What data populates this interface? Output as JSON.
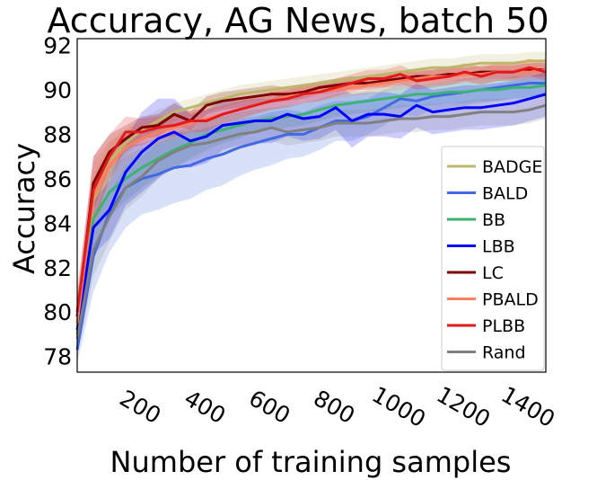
{
  "chart_data": {
    "type": "line",
    "title": "Accuracy, AG News, batch 50",
    "xlabel": "Number of training samples",
    "ylabel": "Accuracy",
    "xlim": [
      0,
      1450
    ],
    "ylim": [
      77.3,
      92.3
    ],
    "xticks": [
      200,
      400,
      600,
      800,
      1000,
      1200,
      1400
    ],
    "yticks": [
      78,
      80,
      82,
      84,
      86,
      88,
      90,
      92
    ],
    "grid": false,
    "legend_position": "lower-right",
    "x": [
      0,
      50,
      100,
      150,
      200,
      250,
      300,
      350,
      400,
      450,
      500,
      550,
      600,
      650,
      700,
      750,
      800,
      850,
      900,
      950,
      1000,
      1050,
      1100,
      1150,
      1200,
      1250,
      1300,
      1350,
      1400,
      1450
    ],
    "series": [
      {
        "name": "BADGE",
        "color": "#bdb76b",
        "values": [
          79.5,
          85.0,
          86.8,
          87.6,
          88.2,
          88.6,
          89.0,
          89.2,
          89.4,
          89.6,
          89.8,
          89.9,
          90.0,
          90.1,
          90.2,
          90.3,
          90.4,
          90.5,
          90.6,
          90.7,
          90.8,
          90.9,
          91.0,
          91.0,
          91.1,
          91.2,
          91.2,
          91.2,
          91.3,
          91.3
        ],
        "band": [
          0.8,
          1.2,
          0.8,
          0.6,
          0.5,
          0.5,
          0.4,
          0.4,
          0.4,
          0.4,
          0.4,
          0.4,
          0.4,
          0.4,
          0.4,
          0.4,
          0.4,
          0.4,
          0.4,
          0.4,
          0.4,
          0.4,
          0.4,
          0.4,
          0.4,
          0.4,
          0.4,
          0.4,
          0.4,
          0.4
        ]
      },
      {
        "name": "BALD",
        "color": "#4169e1",
        "values": [
          78.3,
          82.5,
          84.5,
          85.6,
          86.0,
          86.2,
          86.5,
          86.6,
          86.9,
          87.1,
          87.4,
          87.6,
          87.8,
          88.0,
          88.0,
          88.3,
          88.6,
          88.6,
          88.8,
          89.2,
          89.6,
          89.5,
          89.7,
          89.8,
          89.9,
          90.0,
          90.1,
          90.2,
          90.3,
          90.3
        ],
        "band": [
          0.6,
          1.6,
          1.8,
          1.8,
          1.6,
          1.6,
          1.6,
          1.5,
          1.4,
          1.4,
          1.3,
          1.2,
          1.2,
          1.1,
          1.0,
          1.0,
          0.9,
          0.9,
          0.8,
          0.8,
          0.7,
          0.7,
          0.6,
          0.6,
          0.6,
          0.6,
          0.6,
          0.6,
          0.6,
          0.6
        ]
      },
      {
        "name": "BB",
        "color": "#3cb371",
        "values": [
          79.0,
          84.2,
          85.4,
          86.0,
          86.5,
          86.9,
          87.3,
          87.6,
          88.0,
          88.2,
          88.4,
          88.6,
          88.7,
          88.8,
          88.9,
          89.1,
          89.3,
          89.4,
          89.5,
          89.6,
          89.7,
          89.8,
          89.8,
          89.9,
          89.9,
          90.0,
          90.0,
          90.1,
          90.1,
          90.2
        ],
        "band": [
          0.7,
          1.3,
          1.1,
          1.0,
          0.9,
          0.8,
          0.8,
          0.7,
          0.7,
          0.6,
          0.6,
          0.5,
          0.5,
          0.5,
          0.5,
          0.5,
          0.5,
          0.5,
          0.5,
          0.5,
          0.5,
          0.5,
          0.5,
          0.5,
          0.5,
          0.5,
          0.5,
          0.5,
          0.5,
          0.5
        ]
      },
      {
        "name": "LBB",
        "color": "#0000ff",
        "values": [
          79.2,
          83.8,
          84.6,
          86.3,
          87.2,
          87.8,
          88.1,
          87.7,
          87.9,
          88.4,
          88.5,
          88.6,
          88.6,
          88.9,
          88.7,
          88.8,
          89.2,
          88.6,
          88.9,
          88.9,
          88.8,
          89.3,
          89.0,
          89.1,
          89.2,
          89.2,
          89.3,
          89.4,
          89.6,
          89.8
        ],
        "band": [
          0.8,
          1.2,
          1.3,
          1.5,
          1.8,
          1.8,
          1.5,
          1.2,
          1.2,
          1.1,
          1.0,
          1.0,
          1.0,
          1.0,
          1.0,
          1.0,
          1.0,
          1.2,
          1.0,
          1.0,
          1.0,
          1.0,
          1.0,
          1.0,
          1.0,
          1.0,
          1.0,
          1.0,
          1.0,
          1.0
        ]
      },
      {
        "name": "LC",
        "color": "#800000",
        "values": [
          79.8,
          85.8,
          87.2,
          87.8,
          88.3,
          88.4,
          88.9,
          88.6,
          89.3,
          89.5,
          89.6,
          89.7,
          89.8,
          89.8,
          89.9,
          90.1,
          90.2,
          90.3,
          90.3,
          90.4,
          90.5,
          90.6,
          90.6,
          90.7,
          90.7,
          90.8,
          90.8,
          90.8,
          90.9,
          90.9
        ],
        "band": [
          0.9,
          1.2,
          0.8,
          0.6,
          0.5,
          0.5,
          0.5,
          0.4,
          0.4,
          0.4,
          0.4,
          0.4,
          0.4,
          0.3,
          0.3,
          0.3,
          0.3,
          0.3,
          0.3,
          0.3,
          0.3,
          0.3,
          0.3,
          0.3,
          0.3,
          0.3,
          0.3,
          0.3,
          0.3,
          0.3
        ]
      },
      {
        "name": "PBALD",
        "color": "#fa8060",
        "values": [
          79.5,
          85.2,
          86.6,
          87.4,
          87.8,
          88.1,
          88.3,
          88.5,
          88.7,
          88.9,
          89.1,
          89.3,
          89.5,
          89.7,
          89.8,
          89.9,
          90.0,
          90.1,
          90.2,
          90.3,
          90.4,
          90.5,
          90.6,
          90.6,
          90.7,
          90.7,
          90.8,
          90.8,
          90.8,
          90.9
        ],
        "band": [
          1.0,
          1.6,
          1.1,
          0.8,
          0.6,
          0.6,
          0.5,
          0.5,
          0.5,
          0.5,
          0.5,
          0.4,
          0.4,
          0.4,
          0.4,
          0.4,
          0.4,
          0.4,
          0.4,
          0.4,
          0.4,
          0.4,
          0.4,
          0.4,
          0.4,
          0.4,
          0.4,
          0.4,
          0.4,
          0.4
        ]
      },
      {
        "name": "PLBB",
        "color": "#e31a1c",
        "values": [
          80.0,
          85.5,
          87.0,
          88.1,
          88.1,
          88.3,
          88.4,
          88.6,
          88.6,
          88.9,
          89.1,
          89.3,
          89.5,
          89.6,
          89.8,
          89.9,
          90.1,
          90.3,
          90.5,
          90.5,
          90.7,
          90.4,
          90.5,
          90.6,
          90.8,
          90.6,
          90.8,
          90.8,
          91.0,
          90.8
        ],
        "band": [
          1.0,
          1.5,
          1.0,
          0.7,
          0.6,
          0.5,
          0.5,
          0.5,
          0.5,
          0.4,
          0.4,
          0.4,
          0.4,
          0.4,
          0.4,
          0.4,
          0.4,
          0.4,
          0.4,
          0.4,
          0.4,
          0.4,
          0.4,
          0.4,
          0.4,
          0.4,
          0.4,
          0.4,
          0.4,
          0.4
        ]
      },
      {
        "name": "Rand",
        "color": "#808080",
        "values": [
          78.8,
          82.8,
          84.3,
          85.6,
          86.1,
          86.8,
          87.2,
          87.5,
          87.6,
          87.8,
          88.0,
          88.1,
          88.3,
          88.1,
          88.2,
          88.3,
          88.5,
          88.5,
          88.5,
          88.6,
          88.7,
          88.7,
          88.8,
          88.8,
          88.9,
          89.0,
          89.0,
          89.0,
          89.1,
          89.3
        ],
        "band": [
          0.7,
          1.2,
          1.1,
          1.0,
          0.9,
          0.8,
          0.7,
          0.7,
          0.6,
          0.6,
          0.6,
          0.6,
          0.6,
          0.6,
          0.6,
          0.6,
          0.6,
          0.6,
          0.6,
          0.6,
          0.6,
          0.6,
          0.6,
          0.6,
          0.6,
          0.6,
          0.6,
          0.6,
          0.6,
          0.6
        ]
      }
    ]
  }
}
